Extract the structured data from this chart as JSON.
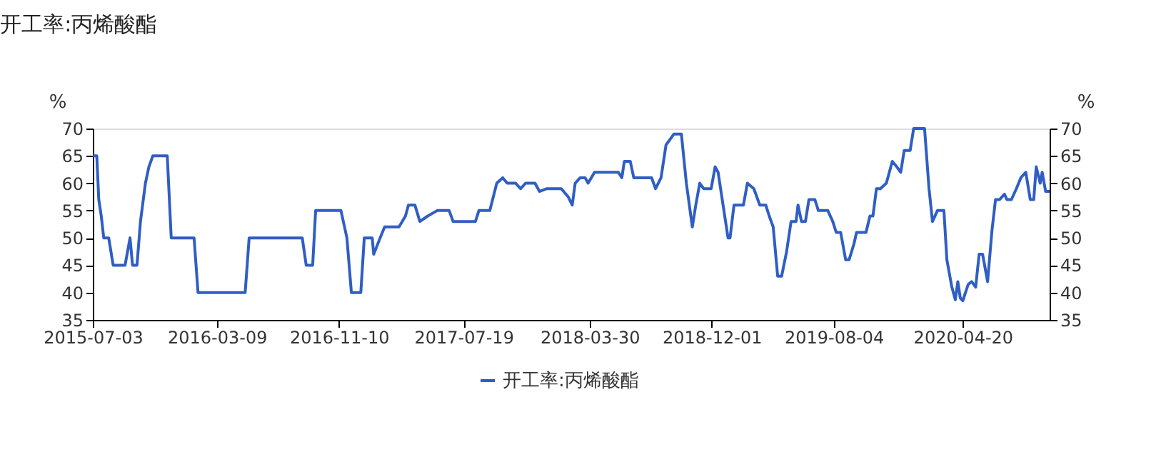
{
  "chart_data": {
    "type": "line",
    "title": "开工率:丙烯酸酯",
    "ylabel": "%",
    "y2label": "%",
    "x": [
      "2015-07-03",
      "2015-07-11",
      "2015-07-15",
      "2015-07-20",
      "2015-07-25",
      "2015-08-04",
      "2015-08-13",
      "2015-09-06",
      "2015-09-16",
      "2015-09-21",
      "2015-09-30",
      "2015-10-07",
      "2015-10-17",
      "2015-10-24",
      "2015-11-01",
      "2015-11-30",
      "2015-12-08",
      "2016-01-23",
      "2016-01-31",
      "2016-05-05",
      "2016-05-13",
      "2016-08-28",
      "2016-09-05",
      "2016-09-18",
      "2016-09-24",
      "2016-11-14",
      "2016-11-26",
      "2016-12-05",
      "2016-12-24",
      "2016-12-31",
      "2017-01-16",
      "2017-01-19",
      "2017-02-01",
      "2017-02-10",
      "2017-03-11",
      "2017-03-24",
      "2017-03-30",
      "2017-04-12",
      "2017-04-22",
      "2017-05-08",
      "2017-05-27",
      "2017-06-20",
      "2017-06-28",
      "2017-08-12",
      "2017-08-19",
      "2017-09-10",
      "2017-09-24",
      "2017-10-06",
      "2017-10-15",
      "2017-11-01",
      "2017-11-11",
      "2017-11-21",
      "2017-12-10",
      "2017-12-19",
      "2018-01-03",
      "2018-02-01",
      "2018-02-15",
      "2018-02-23",
      "2018-03-01",
      "2018-03-11",
      "2018-03-21",
      "2018-03-27",
      "2018-04-09",
      "2018-05-27",
      "2018-06-03",
      "2018-06-08",
      "2018-06-20",
      "2018-06-27",
      "2018-08-02",
      "2018-08-10",
      "2018-08-21",
      "2018-08-31",
      "2018-09-16",
      "2018-10-01",
      "2018-10-11",
      "2018-10-23",
      "2018-10-30",
      "2018-11-07",
      "2018-11-15",
      "2018-11-30",
      "2018-12-08",
      "2018-12-14",
      "2018-12-24",
      "2019-01-03",
      "2019-01-07",
      "2019-01-15",
      "2019-02-03",
      "2019-02-11",
      "2019-02-24",
      "2019-03-08",
      "2019-03-20",
      "2019-03-27",
      "2019-04-04",
      "2019-04-13",
      "2019-04-21",
      "2019-05-01",
      "2019-05-10",
      "2019-05-20",
      "2019-05-24",
      "2019-05-31",
      "2019-06-08",
      "2019-06-15",
      "2019-06-27",
      "2019-07-04",
      "2019-07-23",
      "2019-08-02",
      "2019-08-09",
      "2019-08-18",
      "2019-08-28",
      "2019-09-04",
      "2019-09-14",
      "2019-09-19",
      "2019-10-08",
      "2019-10-16",
      "2019-10-22",
      "2019-10-29",
      "2019-11-06",
      "2019-11-18",
      "2019-11-30",
      "2019-12-09",
      "2019-12-17",
      "2019-12-24",
      "2020-01-05",
      "2020-01-12",
      "2020-02-03",
      "2020-02-12",
      "2020-02-19",
      "2020-02-29",
      "2020-03-13",
      "2020-03-19",
      "2020-03-29",
      "2020-04-05",
      "2020-04-10",
      "2020-04-15",
      "2020-04-20",
      "2020-05-01",
      "2020-05-08",
      "2020-05-16",
      "2020-05-23",
      "2020-05-30",
      "2020-06-09",
      "2020-06-18",
      "2020-06-25",
      "2020-07-03",
      "2020-07-13",
      "2020-07-18",
      "2020-07-27",
      "2020-08-06",
      "2020-08-15",
      "2020-08-25",
      "2020-09-03",
      "2020-09-10",
      "2020-09-15",
      "2020-09-23",
      "2020-09-27",
      "2020-10-04",
      "2020-10-12"
    ],
    "series": [
      {
        "name": "开工率:丙烯酸酯",
        "color": "#2f5ec4",
        "values": [
          65,
          65,
          57,
          54,
          50,
          50,
          45,
          45,
          50,
          45,
          45,
          53,
          60,
          63,
          65,
          65,
          50,
          50,
          40,
          40,
          50,
          50,
          45,
          45,
          55,
          55,
          50,
          40,
          40,
          50,
          50,
          47,
          50,
          52,
          52,
          54,
          56,
          56,
          53,
          54,
          55,
          55,
          53,
          53,
          55,
          55,
          60,
          61,
          60,
          60,
          59,
          60,
          60,
          58.5,
          59,
          59,
          57.5,
          56,
          60,
          61,
          61,
          60,
          62,
          62,
          61,
          64,
          64,
          61,
          61,
          59,
          61,
          67,
          69,
          69,
          60,
          52,
          56,
          60,
          59,
          59,
          63,
          62,
          56,
          50,
          50,
          56,
          56,
          60,
          59,
          56,
          56,
          54,
          52,
          43,
          43,
          47.5,
          53,
          53,
          56,
          53,
          53,
          57,
          57,
          55,
          55,
          53,
          51,
          51,
          46,
          46,
          49,
          51,
          51,
          54,
          54,
          59,
          59,
          60,
          64,
          63,
          62,
          66,
          66,
          70,
          70,
          59,
          53,
          55,
          55,
          46,
          41,
          38.7,
          42,
          39,
          38.5,
          41.5,
          42,
          41,
          47,
          47,
          42,
          51.5,
          57,
          57,
          58,
          57,
          57,
          59,
          61,
          62,
          57,
          57,
          63,
          60,
          62,
          58.5,
          58.5
        ]
      }
    ],
    "xlim": [
      "2015-07-03",
      "2020-10-12"
    ],
    "xticks": [
      {
        "value": "2015-07-03",
        "label": "2015-07-03"
      },
      {
        "value": "2016-03-09",
        "label": "2016-03-09"
      },
      {
        "value": "2016-11-10",
        "label": "2016-11-10"
      },
      {
        "value": "2017-07-19",
        "label": "2017-07-19"
      },
      {
        "value": "2018-03-30",
        "label": "2018-03-30"
      },
      {
        "value": "2018-12-01",
        "label": "2018-12-01"
      },
      {
        "value": "2019-08-04",
        "label": "2019-08-04"
      },
      {
        "value": "2020-04-20",
        "label": "2020-04-20"
      }
    ],
    "ylim": [
      35,
      70
    ],
    "yticks": [
      35,
      40,
      45,
      50,
      55,
      60,
      65,
      70
    ],
    "y2lim": [
      35,
      70
    ],
    "y2ticks": [
      35,
      40,
      45,
      50,
      55,
      60,
      65,
      70
    ],
    "grid": false,
    "legend": "bottom",
    "marker": "none",
    "line_style": "solid"
  }
}
